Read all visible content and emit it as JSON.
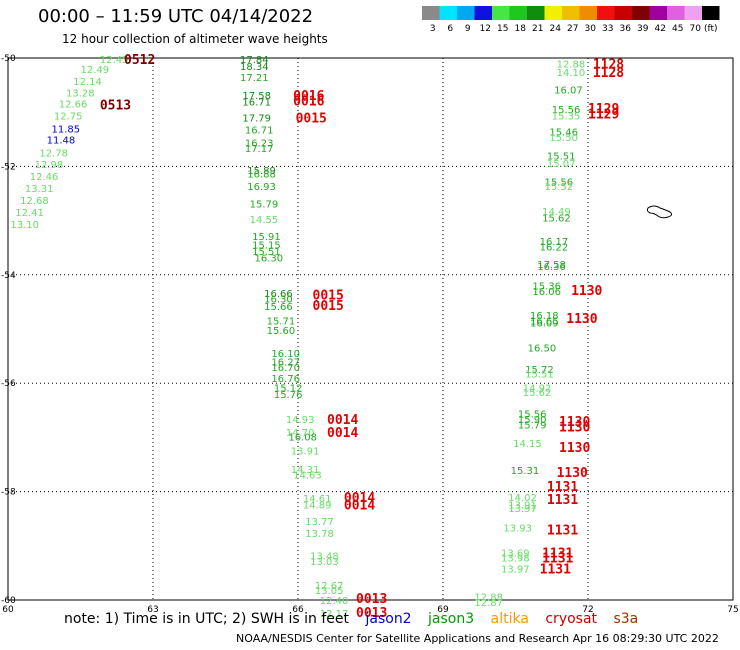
{
  "title": "00:00 – 11:59 UTC 04/14/2022",
  "subtitle": "12 hour collection of altimeter wave heights",
  "legend": {
    "unit": "(ft)",
    "bins": [
      {
        "label": "3",
        "color": "#8a8a8a"
      },
      {
        "label": "6",
        "color": "#00e5ff"
      },
      {
        "label": "9",
        "color": "#00a8f0"
      },
      {
        "label": "12",
        "color": "#1010e0"
      },
      {
        "label": "15",
        "color": "#46e646"
      },
      {
        "label": "18",
        "color": "#1ec81e"
      },
      {
        "label": "21",
        "color": "#108c10"
      },
      {
        "label": "24",
        "color": "#f0f000"
      },
      {
        "label": "27",
        "color": "#f0c000"
      },
      {
        "label": "30",
        "color": "#f08c00"
      },
      {
        "label": "33",
        "color": "#f01010"
      },
      {
        "label": "36",
        "color": "#c80000"
      },
      {
        "label": "39",
        "color": "#800000"
      },
      {
        "label": "42",
        "color": "#a000a0"
      },
      {
        "label": "45",
        "color": "#e060e0"
      },
      {
        "label": "70",
        "color": "#f0a0f0"
      },
      {
        "label": "",
        "color": "#000000"
      }
    ]
  },
  "axes": {
    "x_ticks": [
      "60",
      "63",
      "66",
      "69",
      "72",
      "75"
    ],
    "y_ticks": [
      "-50",
      "-52",
      "-54",
      "-56",
      "-58",
      "-60"
    ]
  },
  "chart_data": {
    "type": "scatter",
    "x_range": [
      60,
      75
    ],
    "y_range": [
      -60,
      -50
    ],
    "grid": true,
    "series_colors": {
      "light": "#66dd66",
      "mid": "#22aa22",
      "dark": "#118811",
      "blue": "#0000cc",
      "red": "#e00000",
      "maroon": "#800000"
    },
    "points": [
      {
        "x": 61.9,
        "y": -50.02,
        "v": "12.45",
        "c": "light"
      },
      {
        "x": 61.5,
        "y": -50.2,
        "v": "12.49",
        "c": "light"
      },
      {
        "x": 61.35,
        "y": -50.42,
        "v": "12.14",
        "c": "light"
      },
      {
        "x": 61.2,
        "y": -50.64,
        "v": "13.28",
        "c": "light"
      },
      {
        "x": 61.05,
        "y": -50.84,
        "v": "12.66",
        "c": "light"
      },
      {
        "x": 60.95,
        "y": -51.06,
        "v": "12.75",
        "c": "light"
      },
      {
        "x": 60.9,
        "y": -51.3,
        "v": "11.85",
        "c": "blue"
      },
      {
        "x": 60.8,
        "y": -51.5,
        "v": "11.48",
        "c": "blue"
      },
      {
        "x": 60.65,
        "y": -51.74,
        "v": "12.78",
        "c": "light"
      },
      {
        "x": 60.55,
        "y": -51.96,
        "v": "12.98",
        "c": "light"
      },
      {
        "x": 60.45,
        "y": -52.18,
        "v": "12.46",
        "c": "light"
      },
      {
        "x": 60.35,
        "y": -52.4,
        "v": "13.31",
        "c": "light"
      },
      {
        "x": 60.25,
        "y": -52.62,
        "v": "12.68",
        "c": "light"
      },
      {
        "x": 60.15,
        "y": -52.84,
        "v": "12.41",
        "c": "light"
      },
      {
        "x": 60.05,
        "y": -53.06,
        "v": "13.10",
        "c": "light"
      },
      {
        "x": 64.8,
        "y": -50.02,
        "v": "17.84",
        "c": "dark"
      },
      {
        "x": 64.8,
        "y": -50.15,
        "v": "18.34",
        "c": "dark"
      },
      {
        "x": 64.8,
        "y": -50.35,
        "v": "17.21",
        "c": "mid"
      },
      {
        "x": 64.85,
        "y": -50.68,
        "v": "17.58",
        "c": "dark"
      },
      {
        "x": 64.85,
        "y": -50.8,
        "v": "16.71",
        "c": "dark"
      },
      {
        "x": 64.85,
        "y": -51.1,
        "v": "17.79",
        "c": "dark"
      },
      {
        "x": 64.9,
        "y": -51.32,
        "v": "16.71",
        "c": "mid"
      },
      {
        "x": 64.9,
        "y": -51.56,
        "v": "16.23",
        "c": "mid"
      },
      {
        "x": 64.9,
        "y": -51.66,
        "v": "17.17",
        "c": "mid"
      },
      {
        "x": 64.95,
        "y": -52.07,
        "v": "15.89",
        "c": "dark"
      },
      {
        "x": 64.95,
        "y": -52.13,
        "v": "16.88",
        "c": "mid"
      },
      {
        "x": 64.95,
        "y": -52.36,
        "v": "16.93",
        "c": "mid"
      },
      {
        "x": 65.0,
        "y": -52.68,
        "v": "15.79",
        "c": "mid"
      },
      {
        "x": 65.0,
        "y": -52.97,
        "v": "14.55",
        "c": "light"
      },
      {
        "x": 65.05,
        "y": -53.28,
        "v": "15.91",
        "c": "mid"
      },
      {
        "x": 65.05,
        "y": -53.44,
        "v": "15.15",
        "c": "mid"
      },
      {
        "x": 65.05,
        "y": -53.56,
        "v": "15.51",
        "c": "mid"
      },
      {
        "x": 65.1,
        "y": -53.68,
        "v": "16.30",
        "c": "mid"
      },
      {
        "x": 65.3,
        "y": -54.34,
        "v": "16.66",
        "c": "dark"
      },
      {
        "x": 65.3,
        "y": -54.44,
        "v": "16.30",
        "c": "mid"
      },
      {
        "x": 65.3,
        "y": -54.58,
        "v": "15.66",
        "c": "mid"
      },
      {
        "x": 65.35,
        "y": -54.84,
        "v": "15.71",
        "c": "mid"
      },
      {
        "x": 65.35,
        "y": -55.02,
        "v": "15.60",
        "c": "mid"
      },
      {
        "x": 65.45,
        "y": -55.44,
        "v": "16.10",
        "c": "mid"
      },
      {
        "x": 65.45,
        "y": -55.6,
        "v": "16.27",
        "c": "mid"
      },
      {
        "x": 65.45,
        "y": -55.7,
        "v": "16.70",
        "c": "mid"
      },
      {
        "x": 65.45,
        "y": -55.9,
        "v": "16.76",
        "c": "mid"
      },
      {
        "x": 65.5,
        "y": -56.08,
        "v": "15.12",
        "c": "mid"
      },
      {
        "x": 65.5,
        "y": -56.2,
        "v": "15.76",
        "c": "mid"
      },
      {
        "x": 65.75,
        "y": -56.66,
        "v": "14.93",
        "c": "light"
      },
      {
        "x": 65.75,
        "y": -56.9,
        "v": "14.70",
        "c": "light"
      },
      {
        "x": 65.8,
        "y": -56.98,
        "v": "16.08",
        "c": "mid"
      },
      {
        "x": 65.85,
        "y": -57.24,
        "v": "13.91",
        "c": "light"
      },
      {
        "x": 65.85,
        "y": -57.58,
        "v": "14.31",
        "c": "light"
      },
      {
        "x": 65.9,
        "y": -57.68,
        "v": "14.63",
        "c": "light"
      },
      {
        "x": 66.1,
        "y": -58.12,
        "v": "14.61",
        "c": "light"
      },
      {
        "x": 66.1,
        "y": -58.24,
        "v": "14.89",
        "c": "light"
      },
      {
        "x": 66.15,
        "y": -58.54,
        "v": "13.77",
        "c": "light"
      },
      {
        "x": 66.15,
        "y": -58.76,
        "v": "13.78",
        "c": "light"
      },
      {
        "x": 66.25,
        "y": -59.18,
        "v": "13.48",
        "c": "light"
      },
      {
        "x": 66.25,
        "y": -59.28,
        "v": "13.03",
        "c": "light"
      },
      {
        "x": 66.35,
        "y": -59.72,
        "v": "12.67",
        "c": "light"
      },
      {
        "x": 66.35,
        "y": -59.82,
        "v": "13.05",
        "c": "light"
      },
      {
        "x": 66.45,
        "y": -60.0,
        "v": "12.40",
        "c": "light"
      },
      {
        "x": 66.45,
        "y": -60.24,
        "v": "12.17",
        "c": "light"
      },
      {
        "x": 71.35,
        "y": -50.1,
        "v": "12.88",
        "c": "light"
      },
      {
        "x": 71.35,
        "y": -50.26,
        "v": "14.10",
        "c": "light"
      },
      {
        "x": 71.3,
        "y": -50.58,
        "v": "16.07",
        "c": "mid"
      },
      {
        "x": 71.25,
        "y": -50.94,
        "v": "15.56",
        "c": "mid"
      },
      {
        "x": 71.25,
        "y": -51.06,
        "v": "15.35",
        "c": "light"
      },
      {
        "x": 71.2,
        "y": -51.36,
        "v": "15.46",
        "c": "mid"
      },
      {
        "x": 71.2,
        "y": -51.46,
        "v": "15.50",
        "c": "light"
      },
      {
        "x": 71.15,
        "y": -51.8,
        "v": "15.51",
        "c": "mid"
      },
      {
        "x": 71.15,
        "y": -51.94,
        "v": "15.07",
        "c": "light"
      },
      {
        "x": 71.1,
        "y": -52.28,
        "v": "15.56",
        "c": "mid"
      },
      {
        "x": 71.1,
        "y": -52.36,
        "v": "15.52",
        "c": "light"
      },
      {
        "x": 71.05,
        "y": -52.82,
        "v": "14.49",
        "c": "light"
      },
      {
        "x": 71.05,
        "y": -52.94,
        "v": "15.62",
        "c": "mid"
      },
      {
        "x": 71.0,
        "y": -53.38,
        "v": "16.17",
        "c": "mid"
      },
      {
        "x": 71.0,
        "y": -53.48,
        "v": "16.22",
        "c": "mid"
      },
      {
        "x": 70.95,
        "y": -53.8,
        "v": "17.58",
        "c": "mid"
      },
      {
        "x": 70.95,
        "y": -53.84,
        "v": "16.36",
        "c": "mid"
      },
      {
        "x": 70.85,
        "y": -54.2,
        "v": "15.36",
        "c": "mid"
      },
      {
        "x": 70.85,
        "y": -54.3,
        "v": "16.06",
        "c": "mid"
      },
      {
        "x": 70.8,
        "y": -54.74,
        "v": "16.18",
        "c": "mid"
      },
      {
        "x": 70.8,
        "y": -54.84,
        "v": "16.65",
        "c": "mid"
      },
      {
        "x": 70.8,
        "y": -54.88,
        "v": "16.09",
        "c": "mid"
      },
      {
        "x": 70.75,
        "y": -55.34,
        "v": "16.50",
        "c": "mid"
      },
      {
        "x": 70.7,
        "y": -55.74,
        "v": "15.72",
        "c": "mid"
      },
      {
        "x": 70.7,
        "y": -55.82,
        "v": "15.51",
        "c": "light"
      },
      {
        "x": 70.65,
        "y": -56.08,
        "v": "14.92",
        "c": "light"
      },
      {
        "x": 70.65,
        "y": -56.16,
        "v": "15.62",
        "c": "light"
      },
      {
        "x": 70.55,
        "y": -56.56,
        "v": "15.56",
        "c": "mid"
      },
      {
        "x": 70.55,
        "y": -56.66,
        "v": "15.90",
        "c": "mid"
      },
      {
        "x": 70.55,
        "y": -56.76,
        "v": "15.79",
        "c": "mid"
      },
      {
        "x": 70.45,
        "y": -57.1,
        "v": "14.15",
        "c": "light"
      },
      {
        "x": 70.4,
        "y": -57.6,
        "v": "15.31",
        "c": "mid"
      },
      {
        "x": 70.35,
        "y": -58.1,
        "v": "14.02",
        "c": "light"
      },
      {
        "x": 70.35,
        "y": -58.24,
        "v": "13.91",
        "c": "light"
      },
      {
        "x": 70.35,
        "y": -58.3,
        "v": "13.97",
        "c": "light"
      },
      {
        "x": 70.25,
        "y": -58.66,
        "v": "13.93",
        "c": "light"
      },
      {
        "x": 70.2,
        "y": -59.12,
        "v": "13.69",
        "c": "light"
      },
      {
        "x": 70.2,
        "y": -59.22,
        "v": "13.98",
        "c": "light"
      },
      {
        "x": 70.2,
        "y": -59.42,
        "v": "13.97",
        "c": "light"
      },
      {
        "x": 69.65,
        "y": -59.94,
        "v": "12.88",
        "c": "light"
      },
      {
        "x": 69.65,
        "y": -60.04,
        "v": "12.87",
        "c": "light"
      }
    ],
    "pass_labels": [
      {
        "x": 62.4,
        "y": -50.02,
        "t": "0512",
        "c": "maroon"
      },
      {
        "x": 61.9,
        "y": -50.86,
        "t": "0513",
        "c": "maroon"
      },
      {
        "x": 65.9,
        "y": -50.68,
        "t": "0016",
        "c": "red"
      },
      {
        "x": 65.9,
        "y": -50.78,
        "t": "0016",
        "c": "red"
      },
      {
        "x": 65.95,
        "y": -51.1,
        "t": "0015",
        "c": "red"
      },
      {
        "x": 66.3,
        "y": -54.36,
        "t": "0015",
        "c": "red"
      },
      {
        "x": 66.3,
        "y": -54.56,
        "t": "0015",
        "c": "red"
      },
      {
        "x": 66.6,
        "y": -56.66,
        "t": "0014",
        "c": "red"
      },
      {
        "x": 66.6,
        "y": -56.9,
        "t": "0014",
        "c": "red"
      },
      {
        "x": 66.95,
        "y": -58.1,
        "t": "0014",
        "c": "red"
      },
      {
        "x": 66.95,
        "y": -58.24,
        "t": "0014",
        "c": "red"
      },
      {
        "x": 67.2,
        "y": -59.96,
        "t": "0013",
        "c": "red"
      },
      {
        "x": 67.2,
        "y": -60.22,
        "t": "0013",
        "c": "red"
      },
      {
        "x": 72.1,
        "y": -50.1,
        "t": "1128",
        "c": "red"
      },
      {
        "x": 72.1,
        "y": -50.26,
        "t": "1128",
        "c": "red"
      },
      {
        "x": 72.0,
        "y": -50.92,
        "t": "1129",
        "c": "red"
      },
      {
        "x": 72.0,
        "y": -51.02,
        "t": "1129",
        "c": "red"
      },
      {
        "x": 71.65,
        "y": -54.28,
        "t": "1130",
        "c": "red"
      },
      {
        "x": 71.55,
        "y": -54.8,
        "t": "1130",
        "c": "red"
      },
      {
        "x": 71.4,
        "y": -56.7,
        "t": "1130",
        "c": "red"
      },
      {
        "x": 71.4,
        "y": -56.8,
        "t": "1130",
        "c": "red"
      },
      {
        "x": 71.4,
        "y": -57.18,
        "t": "1130",
        "c": "red"
      },
      {
        "x": 71.35,
        "y": -57.64,
        "t": "1130",
        "c": "red"
      },
      {
        "x": 71.15,
        "y": -57.9,
        "t": "1131",
        "c": "red"
      },
      {
        "x": 71.15,
        "y": -58.14,
        "t": "1131",
        "c": "red"
      },
      {
        "x": 71.15,
        "y": -58.7,
        "t": "1131",
        "c": "red"
      },
      {
        "x": 71.05,
        "y": -59.12,
        "t": "1131",
        "c": "red"
      },
      {
        "x": 71.05,
        "y": -59.22,
        "t": "1131",
        "c": "red"
      },
      {
        "x": 71.0,
        "y": -59.42,
        "t": "1131",
        "c": "red"
      }
    ]
  },
  "footer": {
    "note": "note:  1) Time is in UTC;  2) SWH is in feet",
    "satellites": [
      {
        "name": "jason2",
        "color": "#0000cc"
      },
      {
        "name": "jason3",
        "color": "#009900"
      },
      {
        "name": "altika",
        "color": "#ff9900"
      },
      {
        "name": "cryosat",
        "color": "#cc0000"
      },
      {
        "name": "s3a",
        "color": "#993300"
      }
    ],
    "credit": "NOAA/NESDIS Center for Satellite Applications and Research   Apr 16 08:29:30 UTC 2022"
  }
}
